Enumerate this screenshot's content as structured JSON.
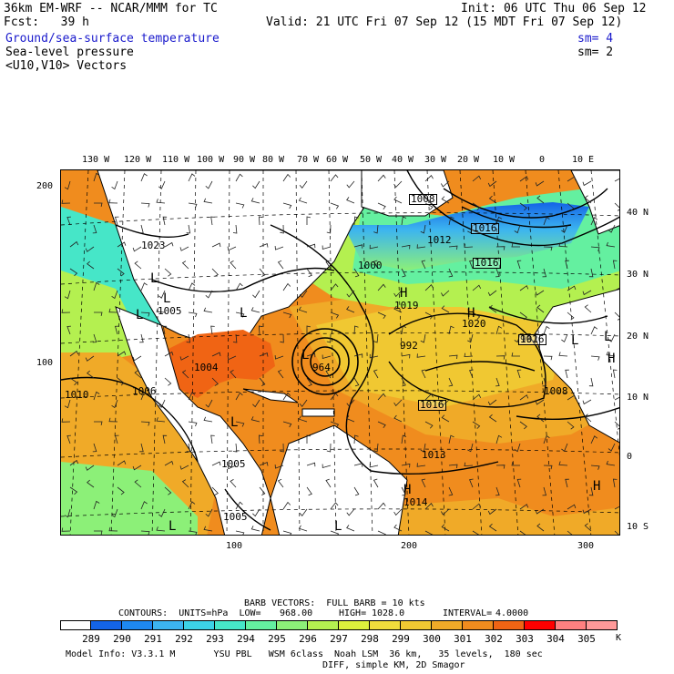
{
  "header": {
    "line1_left": "36km EM-WRF -- NCAR/MMM for TC",
    "line1_right": "Init: 06 UTC Thu 06 Sep 12",
    "line2_left": "Fcst:   39 h",
    "line2_right": "Valid: 21 UTC Fri 07 Sep 12 (15 MDT Fri 07 Sep 12)",
    "field1": "Ground/sea-surface temperature",
    "field1_sm": "sm= 4",
    "field2": "Sea-level pressure",
    "field2_sm": "sm= 2",
    "field3": "<U10,V10> Vectors"
  },
  "axes": {
    "top_lon": [
      "130 W",
      "120 W",
      "110 W",
      "100 W",
      "90 W",
      "80 W",
      "70 W",
      "60 W",
      "50 W",
      "40 W",
      "30 W",
      "20 W",
      "10 W",
      "0",
      "10 E"
    ],
    "right_lat": [
      "40 N",
      "30 N",
      "20 N",
      "10 N",
      "0",
      "10 S"
    ],
    "left_grid": [
      "200",
      "100"
    ],
    "bottom_grid": [
      "100",
      "200",
      "300"
    ]
  },
  "map": {
    "pressure_labels": [
      "1008",
      "1016",
      "1016",
      "1012",
      "1000",
      "992",
      "1023",
      "1005",
      "1004",
      "1006",
      "1010",
      "964",
      "1019",
      "1020",
      "992",
      "1016",
      "1016",
      "1013",
      "1014",
      "1008",
      "1005",
      "1005"
    ],
    "highs_lows": [
      "L",
      "L",
      "L",
      "L",
      "L",
      "L",
      "L",
      "L",
      "H",
      "H",
      "H",
      "H",
      "H",
      "L",
      "L"
    ]
  },
  "legend": {
    "barb_line": "BARB VECTORS:  FULL BARB = 10 kts",
    "contours_label": "CONTOURS:  UNITS=hPa  LOW=",
    "low": "968.00",
    "high_label": "HIGH=",
    "high": "1028.0",
    "interval_label": "INTERVAL=",
    "interval": "4.0000",
    "unit": "K",
    "bins": [
      "289",
      "290",
      "291",
      "292",
      "293",
      "294",
      "295",
      "296",
      "297",
      "298",
      "299",
      "300",
      "301",
      "302",
      "303",
      "304",
      "305"
    ],
    "colors": [
      "#ffffff",
      "#1464e6",
      "#1e88f0",
      "#3cb4f0",
      "#3cd2e6",
      "#46e6c8",
      "#64f0a0",
      "#8cf078",
      "#b4f050",
      "#dcf03c",
      "#f0dc3c",
      "#f0c832",
      "#f0aa28",
      "#f08c1e",
      "#f06414",
      "#ff0000",
      "#ff8080",
      "#ff9999"
    ]
  },
  "footer": {
    "line1": "Model Info: V3.3.1 M       YSU PBL   WSM 6class  Noah LSM  36 km,   35 levels,  180 sec",
    "line2": "DIFF, simple KM, 2D Smagor"
  }
}
